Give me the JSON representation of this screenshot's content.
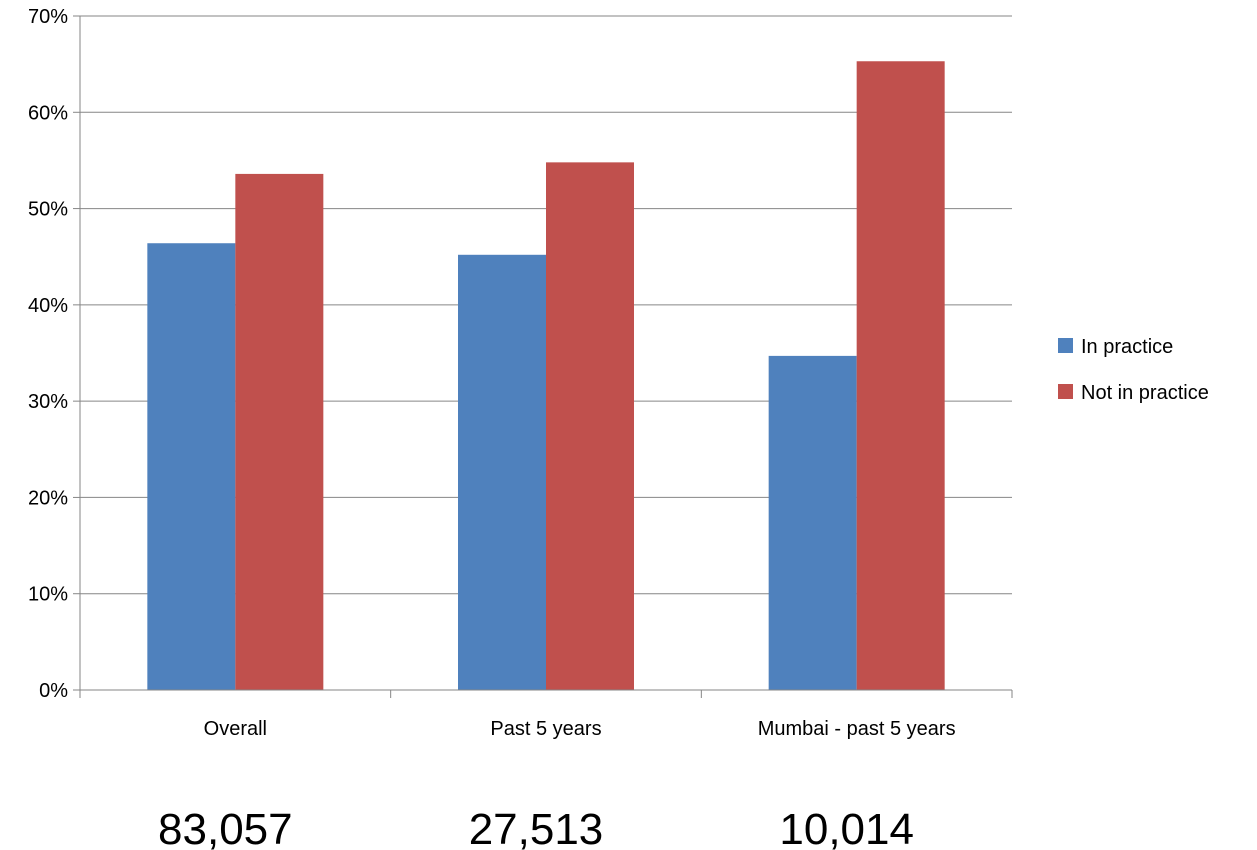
{
  "chart_data": {
    "type": "bar",
    "categories": [
      "Overall",
      "Past 5 years",
      "Mumbai - past 5 years"
    ],
    "series": [
      {
        "name": "In practice",
        "color": "#4F81BD",
        "values": [
          0.464,
          0.452,
          0.347
        ]
      },
      {
        "name": "Not in practice",
        "color": "#C0504D",
        "values": [
          0.536,
          0.548,
          0.653
        ]
      }
    ],
    "ylim": [
      0,
      0.7
    ],
    "y_ticks": [
      {
        "value": 0,
        "label": "0%"
      },
      {
        "value": 0.1,
        "label": "10%"
      },
      {
        "value": 0.2,
        "label": "20%"
      },
      {
        "value": 0.3,
        "label": "30%"
      },
      {
        "value": 0.4,
        "label": "40%"
      },
      {
        "value": 0.5,
        "label": "50%"
      },
      {
        "value": 0.6,
        "label": "60%"
      },
      {
        "value": 0.7,
        "label": "70%"
      }
    ],
    "grid": true,
    "legend_position": "right",
    "category_counts": [
      "83,057",
      "27,513",
      "10,014"
    ],
    "title": "",
    "xlabel": "",
    "ylabel": ""
  }
}
